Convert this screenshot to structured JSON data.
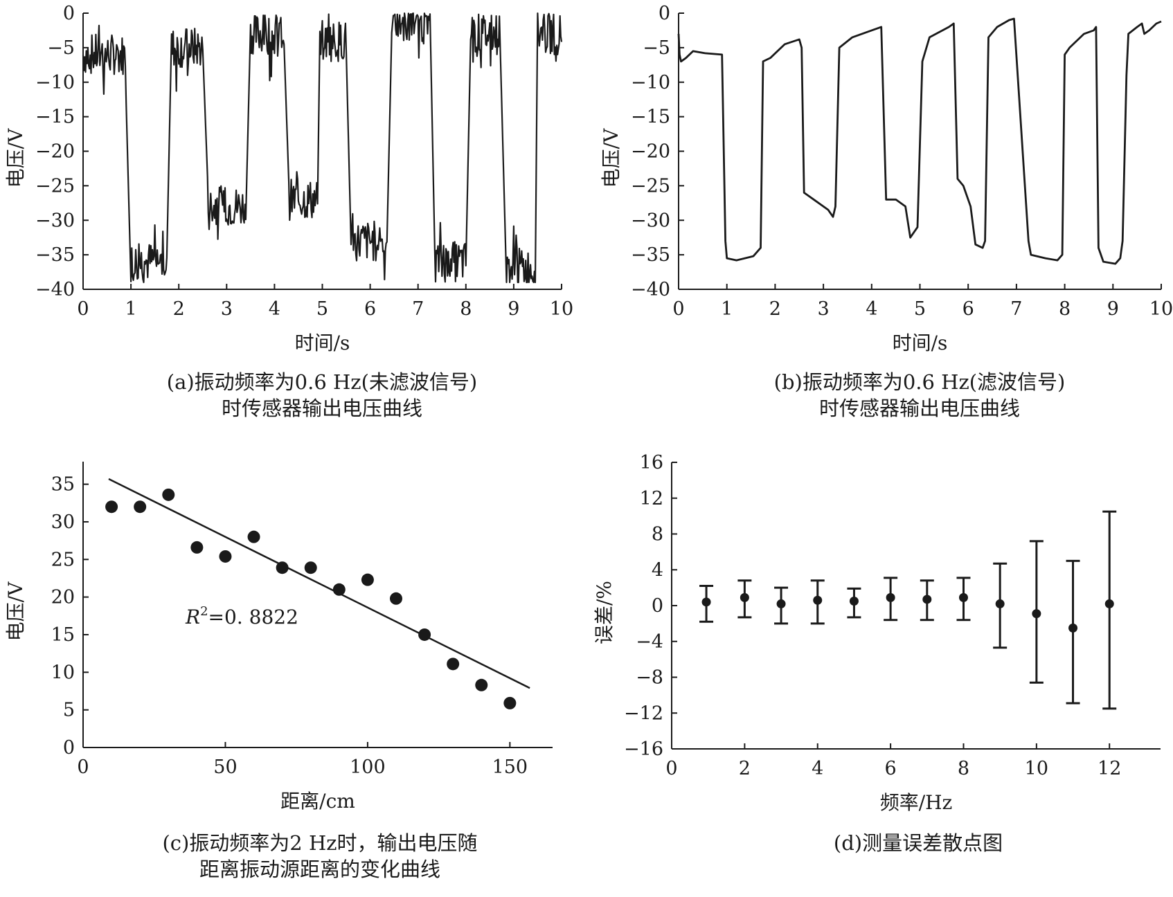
{
  "charts": [
    {
      "id": "a",
      "chart_data": {
        "type": "line",
        "xlabel": "时间/s",
        "ylabel": "电压/V",
        "xlim": [
          0,
          10
        ],
        "ylim": [
          -40,
          0
        ],
        "xticks": [
          "0",
          "1",
          "2",
          "3",
          "4",
          "5",
          "6",
          "7",
          "8",
          "9",
          "10"
        ],
        "yticks": [
          "0",
          "-5",
          "-10",
          "-15",
          "-20",
          "-25",
          "-30",
          "-35",
          "-40"
        ],
        "noisy": true,
        "series": [
          {
            "segments": [
              [
                0,
                0.9,
                -6
              ],
              [
                1.0,
                1.75,
                -36
              ],
              [
                1.85,
                2.5,
                -5
              ],
              [
                2.6,
                3.4,
                -28
              ],
              [
                3.5,
                4.2,
                -3
              ],
              [
                4.3,
                4.9,
                -27
              ],
              [
                4.95,
                5.5,
                -4
              ],
              [
                5.6,
                6.35,
                -33
              ],
              [
                6.45,
                7.25,
                -1.5
              ],
              [
                7.35,
                8.0,
                -36
              ],
              [
                8.1,
                8.7,
                -3
              ],
              [
                8.85,
                9.45,
                -37
              ],
              [
                9.5,
                10.0,
                -3
              ]
            ]
          }
        ],
        "caption_lines": [
          "(a)振动频率为0.6 Hz(未滤波信号)",
          "时传感器输出电压曲线"
        ]
      }
    },
    {
      "id": "b",
      "chart_data": {
        "type": "line",
        "xlabel": "时间/s",
        "ylabel": "电压/V",
        "xlim": [
          0,
          10
        ],
        "ylim": [
          -40,
          0
        ],
        "xticks": [
          "0",
          "1",
          "2",
          "3",
          "4",
          "5",
          "6",
          "7",
          "8",
          "9",
          "10"
        ],
        "yticks": [
          "0",
          "-5",
          "-10",
          "-15",
          "-20",
          "-25",
          "-30",
          "-35",
          "-40"
        ],
        "noisy": false,
        "series": [
          {
            "points": [
              [
                0,
                -3
              ],
              [
                0.02,
                -6
              ],
              [
                0.05,
                -7
              ],
              [
                0.15,
                -6.5
              ],
              [
                0.3,
                -5.5
              ],
              [
                0.55,
                -5.8
              ],
              [
                0.9,
                -6
              ],
              [
                0.97,
                -33
              ],
              [
                1.0,
                -35.5
              ],
              [
                1.2,
                -35.8
              ],
              [
                1.55,
                -35.2
              ],
              [
                1.7,
                -34
              ],
              [
                1.75,
                -7
              ],
              [
                1.9,
                -6.5
              ],
              [
                2.2,
                -4.5
              ],
              [
                2.5,
                -3.8
              ],
              [
                2.55,
                -5
              ],
              [
                2.6,
                -26
              ],
              [
                2.8,
                -27
              ],
              [
                3.1,
                -28.5
              ],
              [
                3.2,
                -29.5
              ],
              [
                3.25,
                -28
              ],
              [
                3.33,
                -5
              ],
              [
                3.6,
                -3.5
              ],
              [
                4.0,
                -2.5
              ],
              [
                4.2,
                -2
              ],
              [
                4.3,
                -27
              ],
              [
                4.5,
                -27
              ],
              [
                4.7,
                -28
              ],
              [
                4.8,
                -32.5
              ],
              [
                4.95,
                -31
              ],
              [
                5.05,
                -7
              ],
              [
                5.2,
                -3.5
              ],
              [
                5.6,
                -2
              ],
              [
                5.7,
                -1.5
              ],
              [
                5.78,
                -24
              ],
              [
                5.9,
                -25
              ],
              [
                6.05,
                -28
              ],
              [
                6.15,
                -33.5
              ],
              [
                6.3,
                -34
              ],
              [
                6.35,
                -33
              ],
              [
                6.42,
                -3.5
              ],
              [
                6.6,
                -2
              ],
              [
                6.85,
                -1
              ],
              [
                6.95,
                -0.8
              ],
              [
                7.25,
                -33
              ],
              [
                7.3,
                -35
              ],
              [
                7.6,
                -35.5
              ],
              [
                7.85,
                -35.8
              ],
              [
                7.95,
                -35
              ],
              [
                8.0,
                -6
              ],
              [
                8.1,
                -5
              ],
              [
                8.4,
                -3
              ],
              [
                8.6,
                -2.5
              ],
              [
                8.65,
                -2
              ],
              [
                8.7,
                -34
              ],
              [
                8.8,
                -36
              ],
              [
                9.05,
                -36.3
              ],
              [
                9.15,
                -35.5
              ],
              [
                9.2,
                -33
              ],
              [
                9.28,
                -9
              ],
              [
                9.32,
                -3
              ],
              [
                9.5,
                -2
              ],
              [
                9.6,
                -1.5
              ],
              [
                9.65,
                -3
              ],
              [
                9.75,
                -2.5
              ],
              [
                9.9,
                -1.5
              ],
              [
                10.0,
                -1.2
              ]
            ]
          }
        ],
        "caption_lines": [
          "(b)振动频率为0.6 Hz(滤波信号)",
          "时传感器输出电压曲线"
        ]
      }
    },
    {
      "id": "c",
      "chart_data": {
        "type": "scatter",
        "xlabel": "距离/cm",
        "ylabel": "电压/V",
        "xlim": [
          0,
          165
        ],
        "ylim": [
          0,
          38
        ],
        "xticks": [
          0,
          50,
          100,
          150
        ],
        "yticks": [
          0,
          5,
          10,
          15,
          20,
          25,
          30,
          35
        ],
        "series": [
          {
            "x": [
              10,
              20,
              30,
              40,
              50,
              60,
              70,
              80,
              90,
              100,
              110,
              120,
              130,
              140,
              150
            ],
            "y": [
              32,
              32,
              33.6,
              26.6,
              25.4,
              28,
              23.9,
              23.9,
              21,
              22.3,
              19.8,
              15,
              11.1,
              8.3,
              5.9
            ]
          }
        ],
        "trendline": {
          "x": [
            9,
            157
          ],
          "y": [
            35.7,
            7.9
          ]
        },
        "annotation": {
          "r": "R",
          "sup": "2",
          "rest": "=0. 8822"
        },
        "caption_lines": [
          "(c)振动频率为2 Hz时，输出电压随",
          "距离振动源距离的变化曲线"
        ]
      }
    },
    {
      "id": "d",
      "chart_data": {
        "type": "scatter",
        "xlabel": "频率/Hz",
        "ylabel": "误差/%",
        "xlim": [
          0,
          13.4
        ],
        "ylim": [
          -16,
          16
        ],
        "xticks": [
          0,
          2,
          4,
          6,
          8,
          10,
          12
        ],
        "yticks": [
          16,
          12,
          8,
          4,
          0,
          -4,
          -8,
          -12,
          -16
        ],
        "series": [
          {
            "x": [
              0.95,
              2.0,
              3.0,
              4.0,
              5.0,
              6.0,
              7.0,
              8.0,
              9.0,
              10.0,
              11.0,
              12.0
            ],
            "y": [
              0.4,
              0.9,
              0.2,
              0.6,
              0.5,
              0.9,
              0.7,
              0.9,
              0.2,
              -0.9,
              -2.5,
              0.2
            ],
            "err_low": [
              -1.8,
              -1.3,
              -2.0,
              -2.0,
              -1.3,
              -1.6,
              -1.6,
              -1.6,
              -4.7,
              -8.6,
              -10.9,
              -11.5
            ],
            "err_high": [
              2.2,
              2.8,
              2.0,
              2.8,
              1.9,
              3.1,
              2.8,
              3.1,
              4.7,
              7.2,
              5.0,
              10.5
            ]
          }
        ],
        "caption_lines": [
          "(d)测量误差散点图"
        ]
      }
    }
  ]
}
